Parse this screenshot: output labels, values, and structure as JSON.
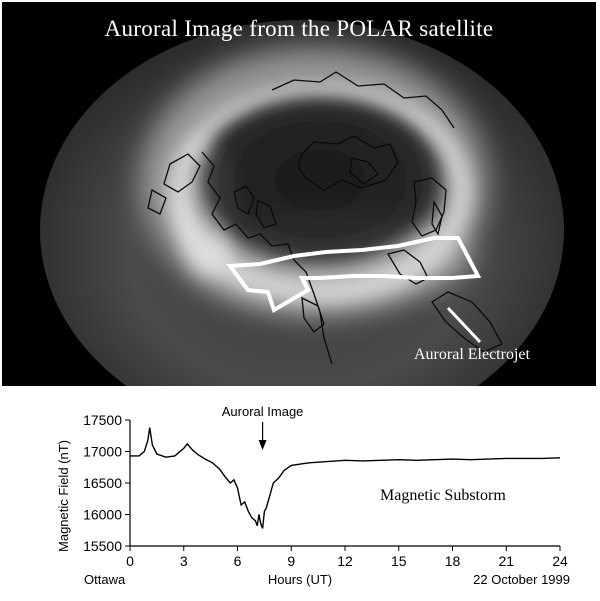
{
  "title": "Auroral Image from the POLAR satellite",
  "labels": {
    "electrojet": "Auroral Electrojet",
    "substorm": "Magnetic Substorm",
    "auroral_image_marker": "Auroral Image",
    "station": "Ottawa",
    "date": "22 October 1999"
  },
  "colors": {
    "background": "#000000",
    "aurora": "#d8d8d8",
    "arrow": "#ffffff",
    "plot_line": "#000000"
  },
  "chart_data": {
    "type": "line",
    "title": "",
    "xlabel": "Hours (UT)",
    "ylabel": "Magnetic Field (nT)",
    "xlim": [
      0,
      24
    ],
    "ylim": [
      15500,
      17500
    ],
    "xticks": [
      0,
      3,
      6,
      9,
      12,
      15,
      18,
      21,
      24
    ],
    "yticks": [
      15500,
      16000,
      16500,
      17000,
      17500
    ],
    "marker_x": 7.4,
    "series": [
      {
        "name": "",
        "x": [
          0.0,
          0.5,
          0.8,
          1.0,
          1.1,
          1.25,
          1.5,
          2.0,
          2.5,
          3.0,
          3.2,
          3.5,
          3.8,
          4.2,
          4.6,
          5.0,
          5.3,
          5.6,
          5.8,
          6.0,
          6.2,
          6.4,
          6.6,
          6.8,
          7.0,
          7.1,
          7.2,
          7.3,
          7.4,
          7.5,
          7.6,
          7.8,
          8.0,
          8.3,
          8.6,
          9.0,
          9.5,
          10.0,
          11.0,
          12.0,
          13.0,
          14.0,
          15.0,
          16.0,
          17.0,
          18.0,
          19.0,
          20.0,
          21.0,
          22.0,
          23.0,
          24.0
        ],
        "y": [
          16930,
          16930,
          17000,
          17180,
          17380,
          17100,
          16960,
          16910,
          16930,
          17050,
          17120,
          17020,
          16950,
          16880,
          16820,
          16720,
          16600,
          16500,
          16550,
          16420,
          16150,
          16200,
          16050,
          15950,
          15900,
          15820,
          16000,
          15850,
          15780,
          16050,
          16100,
          16300,
          16500,
          16580,
          16700,
          16780,
          16800,
          16820,
          16840,
          16860,
          16850,
          16860,
          16870,
          16860,
          16870,
          16880,
          16870,
          16880,
          16890,
          16890,
          16890,
          16900
        ]
      }
    ]
  }
}
